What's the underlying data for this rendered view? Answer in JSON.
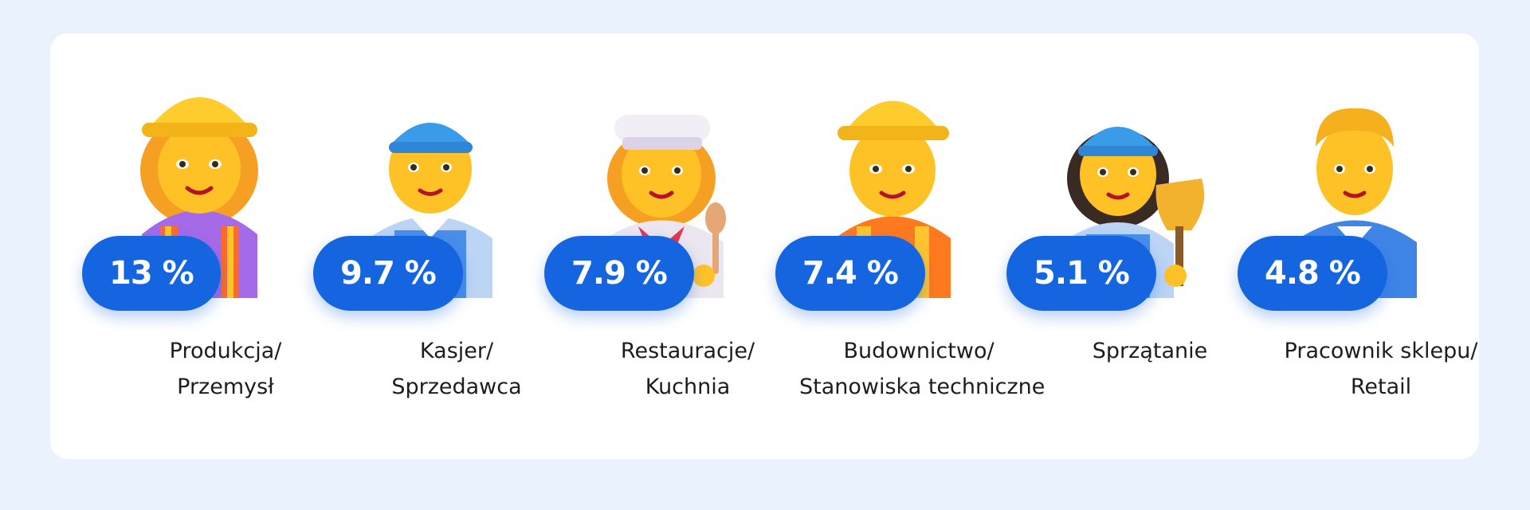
{
  "chart_data": {
    "type": "table",
    "unit": "%",
    "entries": [
      {
        "value": "13 %",
        "label_line1": "Produkcja/",
        "label_line2": "Przemysł",
        "icon": "female-factory-worker-icon"
      },
      {
        "value": "9.7 %",
        "label_line1": "Kasjer/",
        "label_line2": "Sprzedawca",
        "icon": "cashier-icon"
      },
      {
        "value": "7.9 %",
        "label_line1": "Restauracje/",
        "label_line2": "Kuchnia",
        "icon": "cook-icon"
      },
      {
        "value": "7.4 %",
        "label_line1": "Budownictwo/",
        "label_line2": "Stanowiska techniczne",
        "icon": "construction-worker-icon"
      },
      {
        "value": "5.1 %",
        "label_line1": "Sprzątanie",
        "label_line2": "",
        "icon": "cleaner-icon"
      },
      {
        "value": "4.8 %",
        "label_line1": "Pracownik sklepu/",
        "label_line2": "Retail",
        "icon": "shop-worker-icon"
      }
    ],
    "values": [
      13,
      9.7,
      7.9,
      7.4,
      5.1,
      4.8
    ],
    "categories": [
      "Produkcja/Przemysł",
      "Kasjer/Sprzedawca",
      "Restauracje/Kuchnia",
      "Budownictwo/Stanowiska techniczne",
      "Sprzątanie",
      "Pracownik sklepu/Retail"
    ]
  },
  "colors": {
    "background": "#eaf2fd",
    "card": "#ffffff",
    "pill": "#1565e0",
    "text": "#1d1d1f"
  }
}
